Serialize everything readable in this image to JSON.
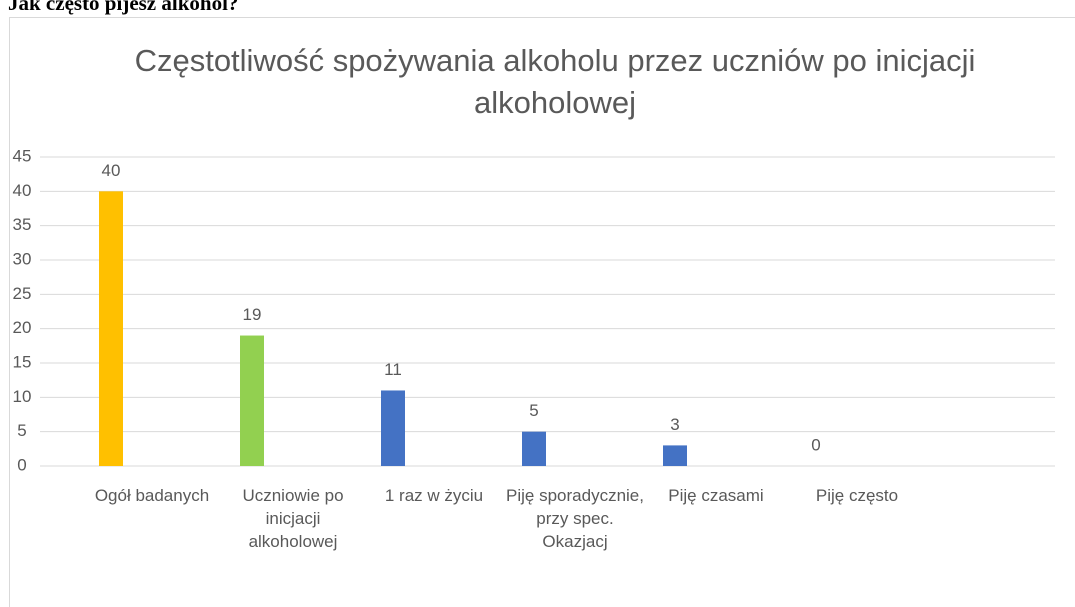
{
  "heading": "Jak często pijesz alkohol?",
  "chart_data": {
    "type": "bar",
    "title": "Częstotliwość spożywania alkoholu przez uczniów po inicjacji alkoholowej",
    "categories": [
      "Ogół badanych",
      "Uczniowie po inicjacji alkoholowej",
      "1 raz w życiu",
      "Piję sporadycznie, przy spec. Okazjacj",
      "Piję czasami",
      "Piję często"
    ],
    "values": [
      40,
      19,
      11,
      5,
      3,
      0
    ],
    "colors": [
      "#ffc000",
      "#92d050",
      "#4472c4",
      "#4472c4",
      "#4472c4",
      "#4472c4"
    ],
    "ylim": [
      0,
      45
    ],
    "yticks": [
      0,
      5,
      10,
      15,
      20,
      25,
      30,
      35,
      40,
      45
    ],
    "grid": true,
    "data_labels": true
  }
}
